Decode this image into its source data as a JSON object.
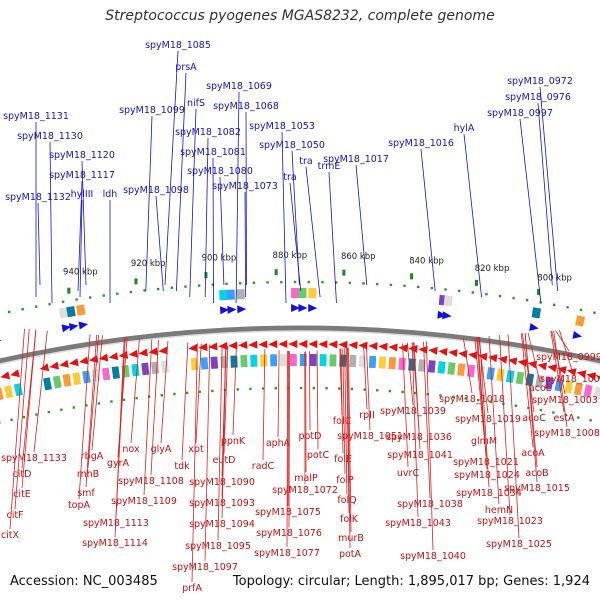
{
  "title": "Streptococcus pyogenes MGAS8232, complete genome",
  "accession_label": "Accession: NC_003485",
  "summary_label": "Topology: circular; Length: 1,895,017 bp; Genes: 1,924",
  "colors": {
    "forward_gene": "#1010e6",
    "reverse_gene": "#e61010",
    "outer_backbone": "#888888",
    "gc_tick": "#1a8a1a"
  },
  "kbp_ticks": [
    "800 kbp",
    "820 kbp",
    "840 kbp",
    "860 kbp",
    "880 kbp",
    "900 kbp",
    "920 kbp",
    "940 kbp"
  ],
  "forward_labels": [
    "spyM18_1085",
    "prsA",
    "nifS",
    "spyM18_1069",
    "spyM18_1068",
    "spyM18_1099",
    "spyM18_1082",
    "spyM18_1081",
    "spyM18_1080",
    "spyM18_1098",
    "spyM18_1073",
    "spyM18_1053",
    "spyM18_1050",
    "tra",
    "tra",
    "trmE",
    "spyM18_1017",
    "spyM18_1016",
    "hylA",
    "spyM18_0997",
    "spyM18_0976",
    "spyM18_0972",
    "spyM18_1131",
    "spyM18_1130",
    "spyM18_1120",
    "spyM18_1117",
    "hylIII",
    "ldh",
    "spyM18_1132"
  ],
  "reverse_labels": [
    "spyM18_1133",
    "citD",
    "citE",
    "citF",
    "citX",
    "rbgA",
    "rnhB",
    "smf",
    "topA",
    "spyM18_1114",
    "spyM18_1113",
    "gyrA",
    "nox",
    "glyA",
    "spyM18_1108",
    "spyM18_1109",
    "tdk",
    "xpt",
    "ppnK",
    "eutD",
    "spyM18_1090",
    "spyM18_1093",
    "spyM18_1094",
    "spyM18_1095",
    "spyM18_1097",
    "prfA",
    "radC",
    "aphA",
    "spyM18_1072",
    "spyM18_1075",
    "spyM18_1076",
    "spyM18_1077",
    "malP",
    "potD",
    "potC",
    "folC",
    "folE",
    "folP",
    "folQ",
    "folK",
    "murB",
    "potA",
    "rpII",
    "spyM18_1051",
    "spyM18_1039",
    "spyM18_1036",
    "spyM18_1041",
    "uvrC",
    "spyM18_1038",
    "spyM18_1043",
    "spyM18_1040",
    "spyM18_1018",
    "spyM18_1019",
    "glmM",
    "spyM18_1021",
    "spyM18_1024",
    "spyM18_1034",
    "hemN",
    "spyM18_1023",
    "spyM18_1025",
    "spyM18_0999",
    "spyM18_1002",
    "acoL",
    "spyM18_1003",
    "acoC",
    "estA",
    "spyM18_1008",
    "acoA",
    "acoB",
    "spyM18_1015"
  ]
}
